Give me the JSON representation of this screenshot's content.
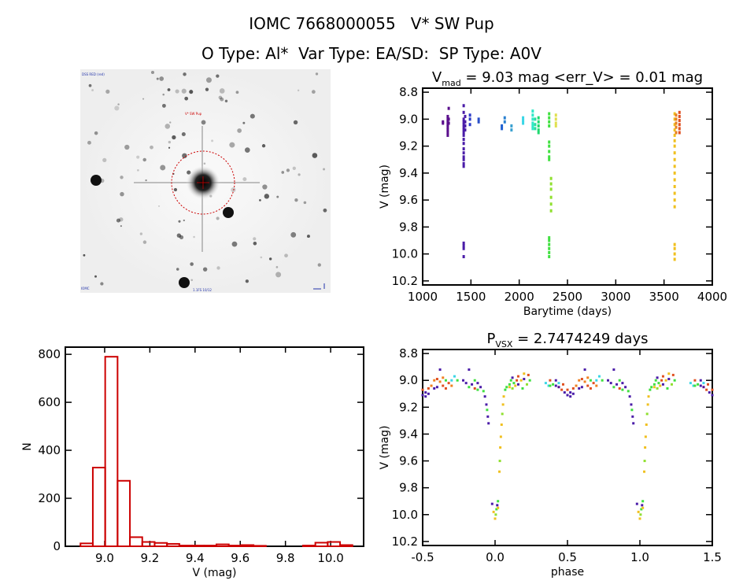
{
  "header": {
    "title_line1": "IOMC 7668000055   V* SW Pup",
    "title_line2": "O Type: Al*  Var Type: EA/SD:  SP Type: A0V"
  },
  "finder_image": {
    "label_top_left": "DSS RED (red)",
    "label_target": "V* SW Pup",
    "label_bottom": "1.1FS 10/12",
    "label_bottom_left": "IOMC",
    "marker_color": "#cc0000"
  },
  "chart_data": [
    {
      "id": "lightcurve",
      "type": "scatter",
      "title_main": "V",
      "title_sub": "mad",
      "title_rest": " = 9.03 mag <err_V> = 0.01 mag",
      "xlabel": "Barytime (days)",
      "ylabel": "V (mag)",
      "xlim": [
        1000,
        4000
      ],
      "ylim": [
        10.23,
        8.77
      ],
      "y_inverted": true,
      "xticks": [
        1000,
        1500,
        2000,
        2500,
        3000,
        3500,
        4000
      ],
      "xtick_labels": [
        "1000",
        "1500",
        "2000",
        "2500",
        "3000",
        "3500",
        "4000"
      ],
      "yticks": [
        8.8,
        9.0,
        9.2,
        9.4,
        9.6,
        9.8,
        10.0,
        10.2
      ],
      "ytick_labels": [
        "8.8",
        "9.0",
        "9.2",
        "9.4",
        "9.6",
        "9.8",
        "10.0",
        "10.2"
      ],
      "groups": [
        {
          "t": 1210,
          "color": "#5a0e8c",
          "v": [
            9.02,
            9.03
          ]
        },
        {
          "t": 1260,
          "color": "#5a0e8c",
          "v": [
            8.98,
            9.0,
            9.02,
            9.04,
            9.06,
            9.08,
            9.1,
            9.12
          ]
        },
        {
          "t": 1270,
          "color": "#5a0e8c",
          "v": [
            8.92,
            9.0,
            9.03
          ]
        },
        {
          "t": 1425,
          "color": "#4a1ca8",
          "v": [
            8.9,
            8.95,
            9.0,
            9.02,
            9.04,
            9.06,
            9.08,
            9.1,
            9.12,
            9.15,
            9.18,
            9.22,
            9.25,
            9.28,
            9.3,
            9.33,
            9.35,
            9.92,
            9.94,
            9.96,
            10.02
          ]
        },
        {
          "t": 1440,
          "color": "#4a1ca8",
          "v": [
            8.98,
            9.02,
            9.05,
            9.08
          ]
        },
        {
          "t": 1490,
          "color": "#2a3ac8",
          "v": [
            8.97,
            9.0,
            9.04
          ]
        },
        {
          "t": 1580,
          "color": "#2a50c8",
          "v": [
            9.0,
            9.02
          ]
        },
        {
          "t": 1820,
          "color": "#1f60d0",
          "v": [
            9.05,
            9.07
          ]
        },
        {
          "t": 1850,
          "color": "#2a80d0",
          "v": [
            8.99,
            9.02
          ]
        },
        {
          "t": 1920,
          "color": "#3aa0d0",
          "v": [
            9.05,
            9.08
          ]
        },
        {
          "t": 2040,
          "color": "#3ad6e6",
          "v": [
            8.99,
            9.01,
            9.03
          ]
        },
        {
          "t": 2140,
          "color": "#30e8c8",
          "v": [
            8.94,
            8.97,
            9.0,
            9.03,
            9.05,
            9.07
          ]
        },
        {
          "t": 2165,
          "color": "#28e0a0",
          "v": [
            9.0,
            9.04,
            9.07
          ]
        },
        {
          "t": 2200,
          "color": "#20d870",
          "v": [
            8.99,
            9.02,
            9.05,
            9.08,
            9.1
          ]
        },
        {
          "t": 2310,
          "color": "#40e040",
          "v": [
            8.96,
            8.99,
            9.02,
            9.05,
            9.17,
            9.2,
            9.24,
            9.28,
            9.3,
            9.88,
            9.9,
            9.93,
            9.96,
            9.99,
            10.02
          ]
        },
        {
          "t": 2330,
          "color": "#90e030",
          "v": [
            9.44,
            9.48,
            9.52,
            9.58,
            9.63,
            9.68
          ]
        },
        {
          "t": 2380,
          "color": "#e0e050",
          "v": [
            8.97,
            9.0,
            9.03,
            9.05
          ]
        },
        {
          "t": 3610,
          "color": "#f0c020",
          "v": [
            8.96,
            9.0,
            9.04,
            9.08,
            9.12,
            9.16,
            9.2,
            9.25,
            9.3,
            9.35,
            9.4,
            9.45,
            9.5,
            9.55,
            9.6,
            9.65,
            9.93,
            9.96,
            10.0,
            10.04
          ]
        },
        {
          "t": 3625,
          "color": "#e88020",
          "v": [
            8.97,
            9.0,
            9.03,
            9.06,
            9.1
          ]
        },
        {
          "t": 3660,
          "color": "#e05020",
          "v": [
            8.95,
            8.98,
            9.01,
            9.04,
            9.07,
            9.1
          ]
        }
      ]
    },
    {
      "id": "histogram",
      "type": "bar",
      "xlabel": "V (mag)",
      "ylabel": "N",
      "xlim": [
        8.826,
        10.146
      ],
      "ylim": [
        0,
        830
      ],
      "xticks": [
        9.0,
        9.2,
        9.4,
        9.6,
        9.8,
        10.0
      ],
      "xtick_labels": [
        "9.0",
        "9.2",
        "9.4",
        "9.6",
        "9.8",
        "10.0"
      ],
      "yticks": [
        0,
        200,
        400,
        600,
        800
      ],
      "ytick_labels": [
        "0",
        "200",
        "400",
        "600",
        "800"
      ],
      "bin_start": 8.893,
      "bin_width": 0.0547,
      "counts": [
        12,
        328,
        790,
        273,
        38,
        18,
        14,
        10,
        3,
        3,
        3,
        8,
        3,
        5,
        2,
        0,
        0,
        0,
        3,
        15,
        18,
        5
      ],
      "color": "#cc0000"
    },
    {
      "id": "phased",
      "type": "scatter",
      "title_main": "P",
      "title_sub": "VSX",
      "title_rest": " = 2.7474249 days",
      "xlabel": "phase",
      "ylabel": "V (mag)",
      "xlim": [
        -0.5,
        1.5
      ],
      "ylim": [
        10.23,
        8.77
      ],
      "y_inverted": true,
      "xticks": [
        -0.5,
        0.0,
        0.5,
        1.0,
        1.5
      ],
      "xtick_labels": [
        "-0.5",
        "0.0",
        "0.5",
        "1.0",
        "1.5"
      ],
      "yticks": [
        8.8,
        9.0,
        9.2,
        9.4,
        9.6,
        9.8,
        10.0,
        10.2
      ],
      "ytick_labels": [
        "8.8",
        "9.0",
        "9.2",
        "9.4",
        "9.6",
        "9.8",
        "10.0",
        "10.2"
      ],
      "palette": [
        "#4a1ca8",
        "#e05020",
        "#f08020",
        "#40e040",
        "#3ad6e6",
        "#f0c020",
        "#90e030",
        "#5a0e8c"
      ],
      "points": [
        [
          0.0,
          10.03,
          5
        ],
        [
          0.005,
          10.0,
          6
        ],
        [
          0.01,
          9.96,
          3
        ],
        [
          0.015,
          9.93,
          0
        ],
        [
          0.02,
          9.9,
          3
        ],
        [
          0.02,
          9.95,
          5
        ],
        [
          0.03,
          9.68,
          5
        ],
        [
          0.033,
          9.6,
          6
        ],
        [
          0.036,
          9.5,
          5
        ],
        [
          0.04,
          9.42,
          5
        ],
        [
          0.045,
          9.33,
          5
        ],
        [
          0.05,
          9.25,
          6
        ],
        [
          0.055,
          9.18,
          5
        ],
        [
          0.06,
          9.12,
          5
        ],
        [
          0.07,
          9.07,
          3
        ],
        [
          0.08,
          9.05,
          3
        ],
        [
          0.1,
          9.03,
          3
        ],
        [
          0.11,
          9.0,
          3
        ],
        [
          0.12,
          8.98,
          0
        ],
        [
          0.13,
          9.02,
          3
        ],
        [
          0.14,
          9.04,
          5
        ],
        [
          0.15,
          9.0,
          1
        ],
        [
          0.16,
          9.03,
          0
        ],
        [
          0.18,
          9.0,
          5
        ],
        [
          0.2,
          8.99,
          0
        ],
        [
          0.22,
          9.03,
          6
        ],
        [
          0.24,
          9.0,
          3
        ],
        [
          0.35,
          9.02,
          4
        ],
        [
          0.37,
          9.04,
          4
        ],
        [
          0.38,
          9.0,
          1
        ],
        [
          0.4,
          9.03,
          3
        ],
        [
          0.42,
          9.04,
          0
        ],
        [
          0.44,
          9.05,
          7
        ],
        [
          0.46,
          9.07,
          1
        ],
        [
          0.48,
          9.09,
          0
        ],
        [
          0.5,
          9.11,
          0
        ],
        [
          0.52,
          9.09,
          0
        ],
        [
          0.54,
          9.06,
          1
        ],
        [
          0.56,
          9.04,
          2
        ],
        [
          0.58,
          9.0,
          2
        ],
        [
          0.6,
          8.99,
          1
        ],
        [
          0.62,
          9.01,
          2
        ],
        [
          0.64,
          8.98,
          2
        ],
        [
          0.66,
          9.0,
          3
        ],
        [
          0.68,
          9.02,
          1
        ],
        [
          0.7,
          9.0,
          4
        ],
        [
          0.72,
          8.97,
          4
        ],
        [
          0.74,
          9.0,
          3
        ],
        [
          0.78,
          9.0,
          0
        ],
        [
          0.8,
          9.02,
          0
        ],
        [
          0.82,
          9.05,
          3
        ],
        [
          0.84,
          9.03,
          0
        ],
        [
          0.86,
          9.06,
          1
        ],
        [
          0.88,
          9.02,
          0
        ],
        [
          0.9,
          9.05,
          0
        ],
        [
          0.92,
          9.08,
          3
        ],
        [
          0.93,
          9.12,
          0
        ],
        [
          0.94,
          9.18,
          0
        ],
        [
          0.945,
          9.22,
          3
        ],
        [
          0.95,
          9.27,
          0
        ],
        [
          0.955,
          9.32,
          0
        ],
        [
          0.52,
          9.12,
          0
        ],
        [
          0.62,
          8.92,
          0
        ],
        [
          0.64,
          9.04,
          1
        ],
        [
          0.66,
          9.06,
          1
        ],
        [
          0.7,
          9.04,
          2
        ],
        [
          0.6,
          9.05,
          0
        ],
        [
          0.58,
          9.06,
          0
        ],
        [
          0.2,
          8.95,
          5
        ],
        [
          0.1,
          9.05,
          5
        ],
        [
          0.12,
          9.06,
          6
        ],
        [
          0.16,
          8.97,
          1
        ],
        [
          0.19,
          9.06,
          3
        ],
        [
          0.23,
          8.96,
          1
        ],
        [
          0.82,
          8.92,
          0
        ],
        [
          0.86,
          9.0,
          3
        ],
        [
          0.88,
          9.07,
          3
        ],
        [
          0.44,
          9.02,
          4
        ],
        [
          0.42,
          9.0,
          0
        ],
        [
          0.38,
          9.04,
          3
        ],
        [
          0.47,
          9.03,
          1
        ],
        [
          0.5,
          9.07,
          1
        ],
        [
          0.54,
          9.1,
          0
        ],
        [
          0.98,
          9.92,
          0
        ],
        [
          0.99,
          9.98,
          5
        ]
      ]
    }
  ]
}
